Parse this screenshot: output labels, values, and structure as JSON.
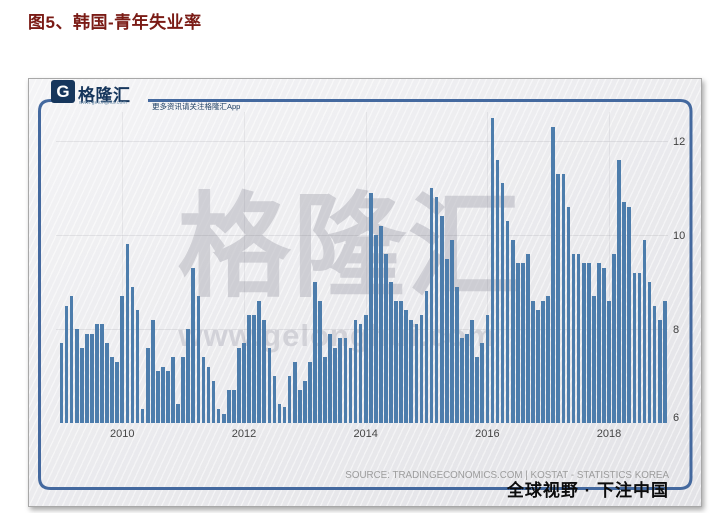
{
  "title": "图5、韩国-青年失业率",
  "logo": {
    "icon": "gelonghui-g-icon",
    "brand": "格隆汇",
    "url": "www.gelonghui.com",
    "slogan": "更多资讯请关注格隆汇App"
  },
  "watermark": {
    "text": "格隆汇",
    "url": "www.gelonghui.com"
  },
  "footer": {
    "source": "SOURCE: TRADINGECONOMICS.COM | KOSTAT - STATISTICS KOREA",
    "stamp": "全球视野 · 下注中国"
  },
  "chart_data": {
    "type": "bar",
    "title": "韩国-青年失业率",
    "x_start": "2009-01",
    "x_end": "2018-12",
    "x_tick_labels": [
      "2010",
      "2012",
      "2014",
      "2016",
      "2018"
    ],
    "x_tick_month_index": [
      12,
      36,
      60,
      84,
      108
    ],
    "y_ticks": [
      6,
      8,
      10,
      12
    ],
    "ylim": [
      6,
      12.6
    ],
    "grid": true,
    "bar_color": "#4d7dac",
    "values": [
      7.7,
      8.5,
      8.7,
      8.0,
      7.6,
      7.9,
      7.9,
      8.1,
      8.1,
      7.7,
      7.4,
      7.3,
      8.7,
      9.8,
      8.9,
      8.4,
      6.3,
      7.6,
      8.2,
      7.1,
      7.2,
      7.1,
      7.4,
      6.4,
      7.4,
      8.0,
      9.3,
      8.7,
      7.4,
      7.2,
      6.9,
      6.3,
      6.2,
      6.7,
      6.7,
      7.6,
      7.7,
      8.3,
      8.3,
      8.6,
      8.2,
      7.6,
      7.0,
      6.4,
      6.35,
      7.0,
      7.3,
      6.7,
      6.9,
      7.3,
      9.0,
      8.6,
      7.4,
      7.9,
      7.6,
      7.8,
      7.8,
      7.6,
      8.2,
      8.1,
      8.3,
      10.9,
      10.0,
      10.2,
      9.6,
      9.0,
      8.6,
      8.6,
      8.4,
      8.2,
      8.1,
      8.3,
      8.8,
      11.0,
      10.8,
      10.4,
      9.5,
      9.9,
      8.9,
      7.8,
      7.9,
      8.2,
      7.4,
      7.7,
      8.3,
      12.5,
      11.6,
      11.1,
      10.3,
      9.9,
      9.4,
      9.4,
      9.6,
      8.6,
      8.4,
      8.6,
      8.7,
      12.3,
      11.3,
      11.3,
      10.6,
      9.6,
      9.6,
      9.4,
      9.4,
      8.7,
      9.4,
      9.3,
      8.6,
      9.6,
      11.6,
      10.7,
      10.6,
      9.2,
      9.2,
      9.9,
      9.0,
      8.5,
      8.2,
      8.6
    ]
  }
}
